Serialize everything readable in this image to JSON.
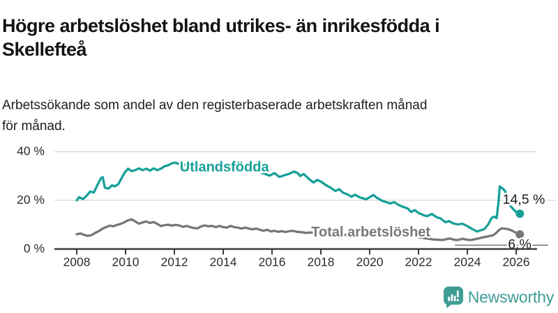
{
  "header": {
    "title_lines": [
      "Högre arbetslöshet bland utrikes- än inrikesfödda i",
      "Skellefteå"
    ],
    "subtitle_lines": [
      "Arbetssökande som andel av den registerbaserade arbetskraften månad",
      "för månad."
    ]
  },
  "footer": {
    "brand": "Newsworthy"
  },
  "colors": {
    "foreign_born_line": "#17a098",
    "total_line": "#77777a",
    "axis": "#3b3b3b",
    "grid": "#d8d8d8",
    "tick_text": "#2c2c2c",
    "annotation_text": "#1c1c1c",
    "leader_line": "#6f6f6f",
    "brand_teal": "#3f9c95"
  },
  "chart_data": {
    "type": "line",
    "title": "Högre arbetslöshet bland utrikes- än inrikesfödda i Skellefteå",
    "subtitle": "Arbetssökande som andel av den registerbaserade arbetskraften månad för månad.",
    "unit": "%",
    "xlim": [
      2007.1,
      2026.9
    ],
    "ylim": [
      0,
      40
    ],
    "grid": "horizontal",
    "x_ticks": [
      2008,
      2010,
      2012,
      2014,
      2016,
      2018,
      2020,
      2022,
      2024,
      2026
    ],
    "y_ticks": [
      {
        "value": 0,
        "label": "0 %"
      },
      {
        "value": 20,
        "label": "20 %"
      },
      {
        "value": 40,
        "label": "40 %"
      }
    ],
    "legend_position": "inline-labels",
    "series": [
      {
        "name": "Utlandsfödda",
        "color": "#17a098",
        "end_label": "14,5 %",
        "end_value": 14.5,
        "inline_label_pos": [
          2014.05,
          33.4
        ],
        "points": [
          [
            2008.0,
            20.0
          ],
          [
            2008.1,
            21.3
          ],
          [
            2008.25,
            20.5
          ],
          [
            2008.4,
            21.8
          ],
          [
            2008.55,
            23.6
          ],
          [
            2008.7,
            23.2
          ],
          [
            2008.8,
            25.3
          ],
          [
            2008.9,
            27.3
          ],
          [
            2009.0,
            29.2
          ],
          [
            2009.07,
            29.5
          ],
          [
            2009.15,
            25.2
          ],
          [
            2009.3,
            24.8
          ],
          [
            2009.45,
            26.2
          ],
          [
            2009.55,
            25.7
          ],
          [
            2009.7,
            26.6
          ],
          [
            2009.8,
            28.4
          ],
          [
            2009.95,
            31.2
          ],
          [
            2010.1,
            33.0
          ],
          [
            2010.25,
            32.0
          ],
          [
            2010.4,
            32.4
          ],
          [
            2010.55,
            33.1
          ],
          [
            2010.7,
            32.4
          ],
          [
            2010.85,
            33.0
          ],
          [
            2011.0,
            32.2
          ],
          [
            2011.15,
            33.1
          ],
          [
            2011.3,
            32.4
          ],
          [
            2011.45,
            33.0
          ],
          [
            2011.6,
            34.0
          ],
          [
            2011.75,
            34.4
          ],
          [
            2011.9,
            35.2
          ],
          [
            2012.05,
            35.5
          ],
          [
            2012.15,
            35.0
          ],
          [
            2012.3,
            35.3
          ],
          [
            2012.5,
            34.2
          ],
          [
            2012.7,
            33.5
          ],
          [
            2012.9,
            33.0
          ],
          [
            2013.1,
            33.6
          ],
          [
            2013.3,
            33.0
          ],
          [
            2013.5,
            32.7
          ],
          [
            2013.7,
            33.1
          ],
          [
            2013.9,
            32.6
          ],
          [
            2014.1,
            32.9
          ],
          [
            2014.3,
            32.4
          ],
          [
            2014.5,
            32.7
          ],
          [
            2014.7,
            32.1
          ],
          [
            2014.9,
            32.6
          ],
          [
            2015.1,
            32.9
          ],
          [
            2015.3,
            32.2
          ],
          [
            2015.5,
            31.6
          ],
          [
            2015.7,
            30.9
          ],
          [
            2015.9,
            30.1
          ],
          [
            2016.1,
            31.2
          ],
          [
            2016.3,
            29.6
          ],
          [
            2016.5,
            30.3
          ],
          [
            2016.7,
            30.9
          ],
          [
            2016.9,
            31.8
          ],
          [
            2017.05,
            31.2
          ],
          [
            2017.15,
            30.0
          ],
          [
            2017.3,
            30.8
          ],
          [
            2017.5,
            28.9
          ],
          [
            2017.7,
            27.3
          ],
          [
            2017.85,
            28.4
          ],
          [
            2018.0,
            27.7
          ],
          [
            2018.2,
            26.3
          ],
          [
            2018.4,
            25.2
          ],
          [
            2018.6,
            23.8
          ],
          [
            2018.75,
            24.6
          ],
          [
            2018.9,
            23.2
          ],
          [
            2019.1,
            22.4
          ],
          [
            2019.25,
            21.5
          ],
          [
            2019.4,
            22.3
          ],
          [
            2019.6,
            21.2
          ],
          [
            2019.85,
            20.4
          ],
          [
            2020.0,
            21.3
          ],
          [
            2020.15,
            22.2
          ],
          [
            2020.3,
            21.0
          ],
          [
            2020.5,
            19.9
          ],
          [
            2020.7,
            19.2
          ],
          [
            2020.85,
            18.7
          ],
          [
            2021.0,
            19.3
          ],
          [
            2021.2,
            18.0
          ],
          [
            2021.4,
            17.2
          ],
          [
            2021.55,
            16.7
          ],
          [
            2021.7,
            15.2
          ],
          [
            2021.85,
            16.0
          ],
          [
            2022.0,
            14.8
          ],
          [
            2022.2,
            13.9
          ],
          [
            2022.35,
            13.5
          ],
          [
            2022.55,
            14.4
          ],
          [
            2022.75,
            13.0
          ],
          [
            2022.9,
            12.6
          ],
          [
            2023.1,
            11.0
          ],
          [
            2023.25,
            11.5
          ],
          [
            2023.4,
            10.6
          ],
          [
            2023.6,
            10.1
          ],
          [
            2023.8,
            10.4
          ],
          [
            2024.0,
            9.4
          ],
          [
            2024.2,
            8.2
          ],
          [
            2024.4,
            7.2
          ],
          [
            2024.55,
            7.7
          ],
          [
            2024.7,
            8.2
          ],
          [
            2024.85,
            10.0
          ],
          [
            2025.0,
            12.8
          ],
          [
            2025.1,
            13.3
          ],
          [
            2025.2,
            12.7
          ],
          [
            2025.28,
            19.5
          ],
          [
            2025.33,
            25.7
          ],
          [
            2025.45,
            24.8
          ],
          [
            2025.55,
            23.8
          ],
          [
            2025.65,
            20.5
          ],
          [
            2025.78,
            17.5
          ],
          [
            2025.9,
            16.2
          ],
          [
            2026.0,
            15.2
          ],
          [
            2026.15,
            14.5
          ]
        ]
      },
      {
        "name": "Total arbetslöshet",
        "color": "#77777a",
        "end_label": "6,%",
        "end_value": 6.0,
        "inline_label_pos": [
          2020.05,
          6.6
        ],
        "points": [
          [
            2008.0,
            6.1
          ],
          [
            2008.15,
            6.4
          ],
          [
            2008.3,
            5.8
          ],
          [
            2008.45,
            5.4
          ],
          [
            2008.6,
            5.7
          ],
          [
            2008.75,
            6.6
          ],
          [
            2008.9,
            7.3
          ],
          [
            2009.05,
            8.3
          ],
          [
            2009.2,
            9.0
          ],
          [
            2009.35,
            9.6
          ],
          [
            2009.5,
            9.3
          ],
          [
            2009.65,
            9.9
          ],
          [
            2009.8,
            10.3
          ],
          [
            2009.95,
            11.0
          ],
          [
            2010.1,
            11.8
          ],
          [
            2010.25,
            12.2
          ],
          [
            2010.4,
            11.3
          ],
          [
            2010.55,
            10.4
          ],
          [
            2010.7,
            10.9
          ],
          [
            2010.85,
            11.3
          ],
          [
            2011.0,
            10.7
          ],
          [
            2011.15,
            11.1
          ],
          [
            2011.3,
            10.3
          ],
          [
            2011.45,
            9.4
          ],
          [
            2011.6,
            9.8
          ],
          [
            2011.75,
            10.0
          ],
          [
            2011.9,
            9.6
          ],
          [
            2012.05,
            9.9
          ],
          [
            2012.2,
            9.7
          ],
          [
            2012.35,
            9.1
          ],
          [
            2012.5,
            9.5
          ],
          [
            2012.65,
            9.0
          ],
          [
            2012.8,
            8.6
          ],
          [
            2012.95,
            8.5
          ],
          [
            2013.1,
            9.3
          ],
          [
            2013.25,
            9.7
          ],
          [
            2013.4,
            9.3
          ],
          [
            2013.55,
            9.5
          ],
          [
            2013.7,
            9.0
          ],
          [
            2013.85,
            9.5
          ],
          [
            2014.0,
            9.0
          ],
          [
            2014.15,
            8.8
          ],
          [
            2014.3,
            9.5
          ],
          [
            2014.45,
            9.0
          ],
          [
            2014.6,
            8.8
          ],
          [
            2014.75,
            8.4
          ],
          [
            2014.9,
            8.8
          ],
          [
            2015.05,
            8.4
          ],
          [
            2015.2,
            8.1
          ],
          [
            2015.35,
            8.4
          ],
          [
            2015.5,
            7.9
          ],
          [
            2015.65,
            7.5
          ],
          [
            2015.8,
            7.9
          ],
          [
            2015.95,
            7.2
          ],
          [
            2016.1,
            7.5
          ],
          [
            2016.25,
            7.1
          ],
          [
            2016.4,
            7.3
          ],
          [
            2016.55,
            7.0
          ],
          [
            2016.7,
            7.3
          ],
          [
            2016.85,
            7.5
          ],
          [
            2017.0,
            7.1
          ],
          [
            2017.2,
            6.9
          ],
          [
            2017.4,
            6.6
          ],
          [
            2017.6,
            6.8
          ],
          [
            2017.8,
            6.5
          ],
          [
            2018.0,
            6.6
          ],
          [
            2018.2,
            6.2
          ],
          [
            2018.4,
            6.0
          ],
          [
            2018.6,
            6.2
          ],
          [
            2018.8,
            5.9
          ],
          [
            2019.0,
            5.8
          ],
          [
            2019.2,
            6.0
          ],
          [
            2019.4,
            5.7
          ],
          [
            2019.6,
            5.9
          ],
          [
            2019.8,
            5.8
          ],
          [
            2020.0,
            6.1
          ],
          [
            2020.2,
            6.8
          ],
          [
            2020.4,
            7.0
          ],
          [
            2020.6,
            6.8
          ],
          [
            2020.8,
            6.5
          ],
          [
            2021.0,
            6.2
          ],
          [
            2021.2,
            5.9
          ],
          [
            2021.4,
            5.6
          ],
          [
            2021.6,
            5.3
          ],
          [
            2021.8,
            5.1
          ],
          [
            2022.0,
            4.8
          ],
          [
            2022.2,
            4.5
          ],
          [
            2022.4,
            4.2
          ],
          [
            2022.6,
            3.9
          ],
          [
            2022.8,
            3.8
          ],
          [
            2023.0,
            3.7
          ],
          [
            2023.15,
            4.1
          ],
          [
            2023.3,
            4.3
          ],
          [
            2023.45,
            3.8
          ],
          [
            2023.6,
            3.7
          ],
          [
            2023.8,
            4.2
          ],
          [
            2024.0,
            3.8
          ],
          [
            2024.15,
            3.7
          ],
          [
            2024.3,
            4.0
          ],
          [
            2024.45,
            4.3
          ],
          [
            2024.6,
            4.7
          ],
          [
            2024.75,
            5.0
          ],
          [
            2024.9,
            5.3
          ],
          [
            2025.05,
            5.6
          ],
          [
            2025.15,
            6.3
          ],
          [
            2025.3,
            7.8
          ],
          [
            2025.4,
            8.5
          ],
          [
            2025.5,
            8.4
          ],
          [
            2025.65,
            8.2
          ],
          [
            2025.8,
            7.7
          ],
          [
            2025.95,
            6.9
          ],
          [
            2026.05,
            6.4
          ],
          [
            2026.15,
            6.0
          ]
        ]
      }
    ]
  }
}
